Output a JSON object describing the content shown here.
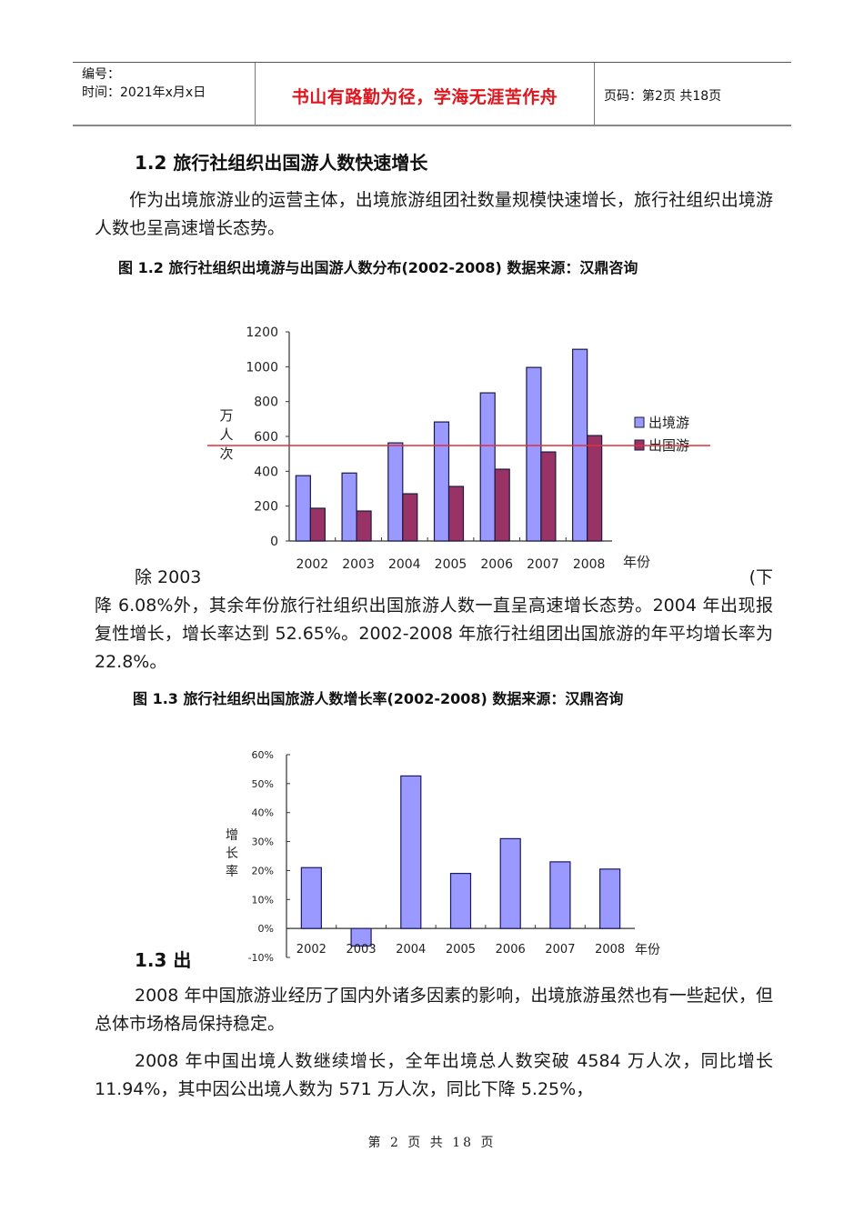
{
  "header": {
    "number_label": "编号：",
    "time_label": "时间：2021年x月x日",
    "motto": "书山有路勤为径，学海无涯苦作舟",
    "page_info": "页码：第2页  共18页"
  },
  "section_1_2": {
    "title": "1.2 旅行社组织出国游人数快速增长",
    "paragraph": "作为出境旅游业的运营主体，出境旅游组团社数量规模快速增长，旅行社组织出境游人数也呈高速增长态势。"
  },
  "figure_1_2": {
    "caption": "图 1.2 旅行社组织出境游与出国游人数分布(2002-2008)    数据来源：汉鼎咨询"
  },
  "paragraph_2": {
    "line1_left": "除 2003",
    "line1_right": "(下",
    "rest": "降 6.08%外，其余年份旅行社组织出国旅游人数一直呈高速增长态势。2004 年出现报复性增长，增长率达到 52.65%。2002-2008 年旅行社组团出国旅游的年平均增长率为 22.8%。"
  },
  "figure_1_3": {
    "caption": "图 1.3 旅行社组织出国旅游人数增长率(2002-2008)     数据来源：汉鼎咨询"
  },
  "section_1_3": {
    "title_visible": "1.3 出"
  },
  "paragraph_3": "2008 年中国旅游业经历了国内外诸多因素的影响，出境旅游虽然也有一些起伏，但总体市场格局保持稳定。",
  "paragraph_4": "2008 年中国出境人数继续增长，全年出境总人数突破 4584 万人次，同比增长 11.94%，其中因公出境人数为 571 万人次，同比下降 5.25%，",
  "footer": {
    "page_text": "第 2 页 共 18 页"
  },
  "colors": {
    "motto": "#e0141c",
    "series_blue": "#9999ff",
    "series_maroon": "#993366",
    "ref_line": "#e0303a"
  },
  "chart_data": [
    {
      "type": "bar",
      "title": "旅行社组织出境游与出国游人数分布(2002-2008)",
      "xlabel": "年份",
      "ylabel": "万人次",
      "categories": [
        "2002",
        "2003",
        "2004",
        "2005",
        "2006",
        "2007",
        "2008"
      ],
      "series": [
        {
          "name": "出境游",
          "values": [
            375,
            390,
            563,
            683,
            850,
            996,
            1100
          ],
          "color": "#9999ff"
        },
        {
          "name": "出国游",
          "values": [
            188,
            172,
            271,
            313,
            412,
            511,
            605
          ],
          "color": "#993366"
        }
      ],
      "yticks": [
        "0",
        "200",
        "400",
        "600",
        "800",
        "1000",
        "1200"
      ],
      "ylim": [
        0,
        1200
      ],
      "reference_line": 548,
      "legend_position": "right",
      "grid": false
    },
    {
      "type": "bar",
      "title": "旅行社组织出国旅游人数增长率(2002-2008)",
      "xlabel": "年份",
      "ylabel": "增长率",
      "categories": [
        "2002",
        "2003",
        "2004",
        "2005",
        "2006",
        "2007",
        "2008"
      ],
      "values": [
        21.0,
        -6.08,
        52.65,
        19.0,
        31.0,
        23.0,
        20.5
      ],
      "yticks": [
        "-10%",
        "0%",
        "10%",
        "20%",
        "30%",
        "40%",
        "50%",
        "60%"
      ],
      "ylim": [
        -10,
        60
      ],
      "grid": false
    }
  ]
}
